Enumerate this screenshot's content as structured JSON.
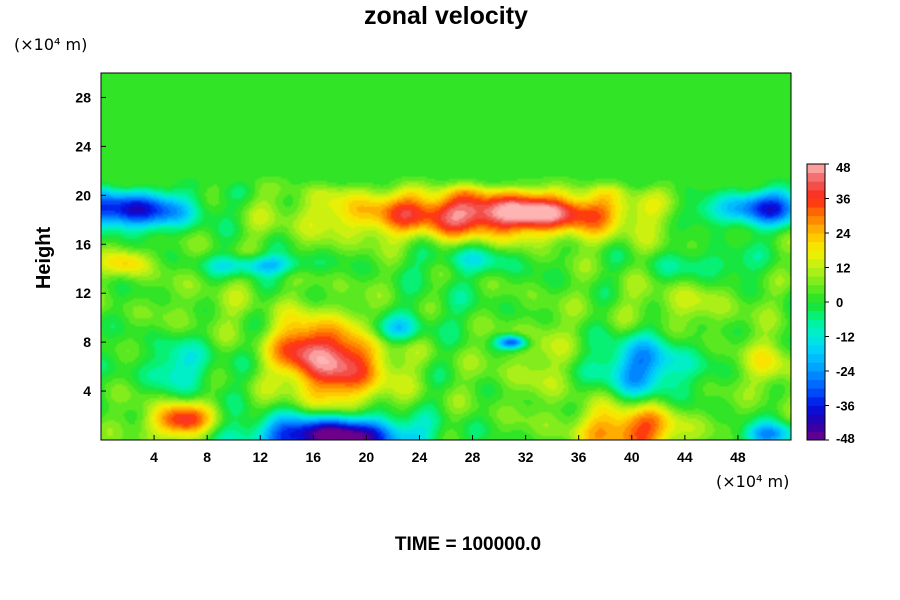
{
  "chart_data": {
    "type": "heatmap",
    "title": "zonal velocity",
    "ylabel": "Height",
    "x_unit": "(×10⁴ m)",
    "y_unit": "(×10⁴ m)",
    "xlim": [
      0,
      52
    ],
    "ylim": [
      0,
      30
    ],
    "x_ticks": [
      4,
      8,
      12,
      16,
      20,
      24,
      28,
      32,
      36,
      40,
      44,
      48
    ],
    "y_ticks": [
      4,
      8,
      12,
      16,
      20,
      24,
      28
    ],
    "colorbar": {
      "range": [
        -48,
        48
      ],
      "ticks": [
        48,
        36,
        24,
        12,
        0,
        -12,
        -24,
        -36,
        -48
      ]
    },
    "background_value": 3,
    "features": [
      {
        "x": 29,
        "y": 18.5,
        "sx": 8,
        "sy": 1.4,
        "value": 40
      },
      {
        "x": 33,
        "y": 18.6,
        "sx": 3,
        "sy": 0.8,
        "value": 12
      },
      {
        "x": 18,
        "y": 6.2,
        "sx": 2.6,
        "sy": 2.4,
        "value": 37
      },
      {
        "x": 15,
        "y": 7.6,
        "sx": 1.6,
        "sy": 1.6,
        "value": 22
      },
      {
        "x": 17.5,
        "y": 0.3,
        "sx": 4,
        "sy": 1.2,
        "value": -56
      },
      {
        "x": 2,
        "y": 18.8,
        "sx": 3.5,
        "sy": 1.1,
        "value": -42
      },
      {
        "x": 50.5,
        "y": 19,
        "sx": 2.2,
        "sy": 1.1,
        "value": -34
      },
      {
        "x": 46,
        "y": 18.6,
        "sx": 2.5,
        "sy": 0.9,
        "value": -14
      },
      {
        "x": 40.5,
        "y": 6,
        "sx": 2.6,
        "sy": 1.8,
        "value": -28
      },
      {
        "x": 6,
        "y": 6,
        "sx": 2,
        "sy": 1.5,
        "value": -15
      },
      {
        "x": 6,
        "y": 1.6,
        "sx": 1.6,
        "sy": 1,
        "value": 36
      },
      {
        "x": 40,
        "y": 0.8,
        "sx": 2.6,
        "sy": 1.5,
        "value": 32
      },
      {
        "x": 50.5,
        "y": 0.4,
        "sx": 1.6,
        "sy": 0.7,
        "value": -26
      },
      {
        "x": 31,
        "y": 8,
        "sx": 0.8,
        "sy": 0.4,
        "value": -36
      },
      {
        "x": 22,
        "y": 9,
        "sx": 1.6,
        "sy": 0.8,
        "value": -20
      },
      {
        "x": 12,
        "y": 14.3,
        "sx": 2.5,
        "sy": 0.6,
        "value": -22
      },
      {
        "x": 2,
        "y": 14.5,
        "sx": 1.2,
        "sy": 0.8,
        "value": 18
      },
      {
        "x": 28,
        "y": 14.8,
        "sx": 2.8,
        "sy": 0.9,
        "value": -12
      },
      {
        "x": 46,
        "y": 14.4,
        "sx": 3,
        "sy": 0.9,
        "value": -10
      },
      {
        "x": 50.5,
        "y": 6.2,
        "sx": 1.4,
        "sy": 1.5,
        "value": 14
      },
      {
        "x": 34,
        "y": 6.5,
        "sx": 3,
        "sy": 2.5,
        "value": 8
      },
      {
        "x": 26,
        "y": 11,
        "sx": 3,
        "sy": 1.5,
        "value": -4
      },
      {
        "x": 44,
        "y": 11,
        "sx": 3,
        "sy": 1.4,
        "value": 8
      },
      {
        "x": 9,
        "y": 11,
        "sx": 3,
        "sy": 1.5,
        "value": 4
      }
    ]
  },
  "footer": {
    "time_label": "TIME = 100000.0"
  }
}
